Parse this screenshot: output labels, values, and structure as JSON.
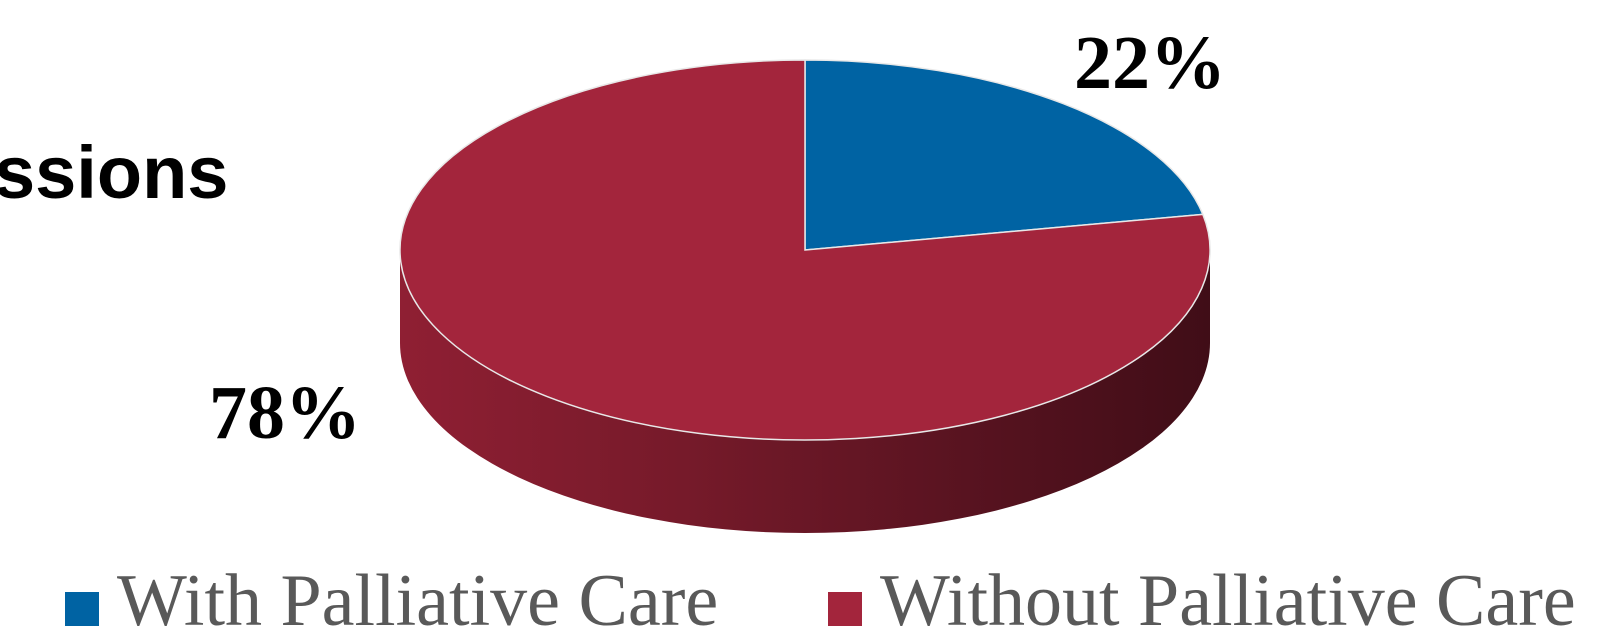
{
  "chart_data": {
    "type": "pie",
    "title_fragment": "ssions",
    "slices": [
      {
        "name": "With Palliative Care",
        "value": 22,
        "label": "22%",
        "color": "#0063A3"
      },
      {
        "name": "Without Palliative Care",
        "value": 78,
        "label": "78%",
        "color": "#A3253C"
      }
    ],
    "legend_position": "bottom",
    "three_d": true
  }
}
